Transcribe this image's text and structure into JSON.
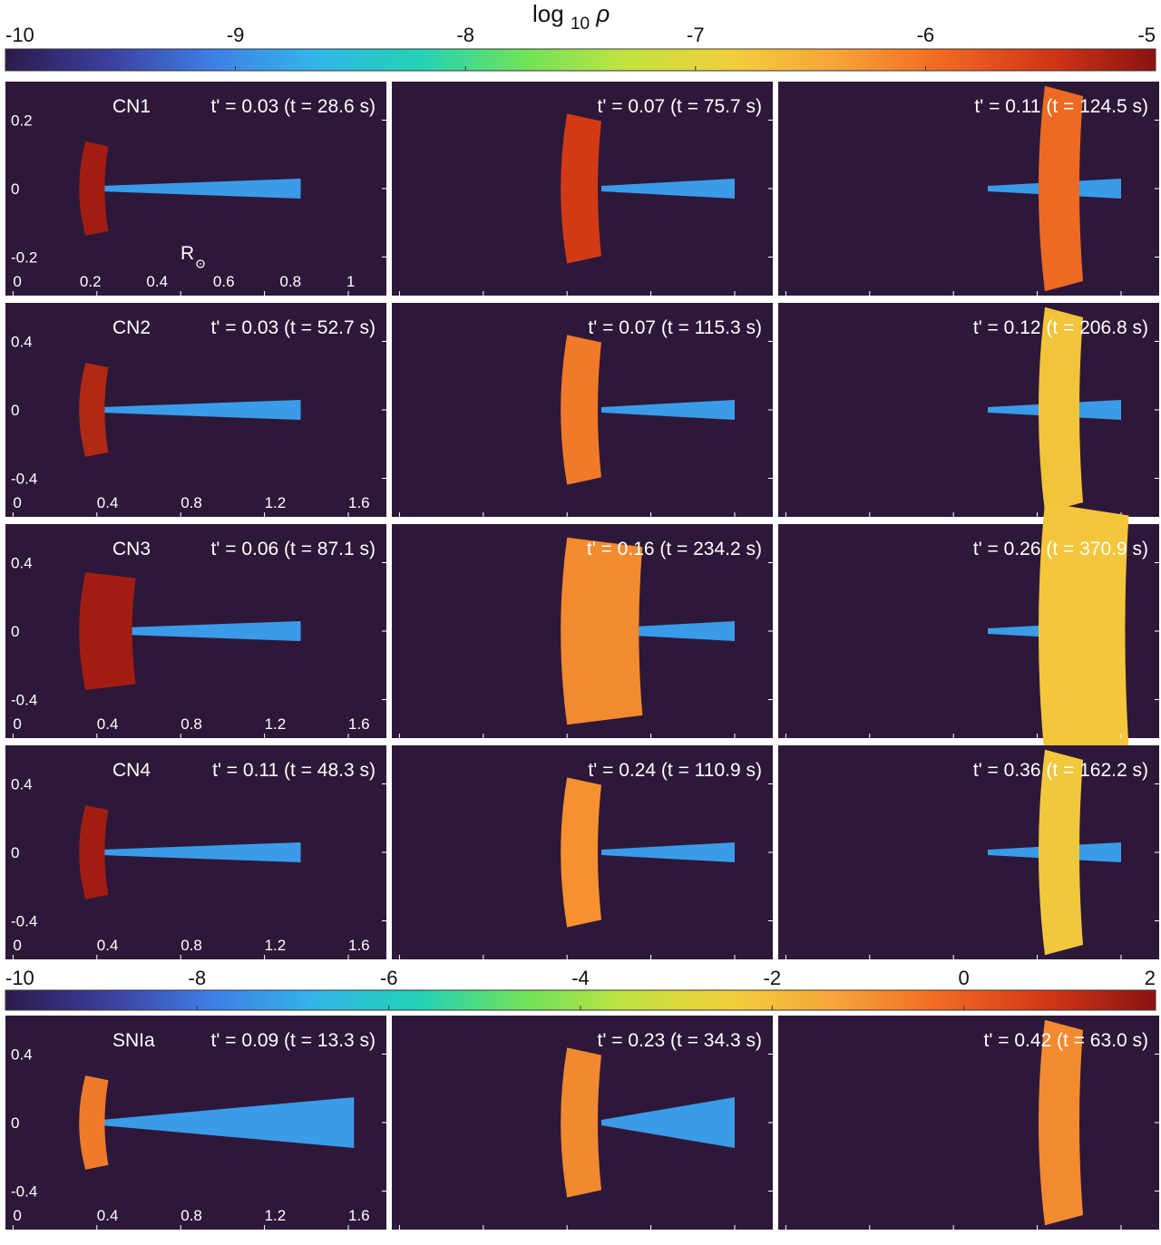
{
  "colorbar_top": {
    "title": "log",
    "title_sub": "10",
    "title_symbol": "ρ",
    "ticks": [
      "-10",
      "-9",
      "-8",
      "-7",
      "-6",
      "-5"
    ],
    "range": [
      -10,
      -5
    ]
  },
  "colorbar_bottom": {
    "ticks": [
      "-10",
      "-8",
      "-6",
      "-4",
      "-2",
      "0",
      "2"
    ],
    "range": [
      -10,
      2
    ]
  },
  "colormap": [
    "#2c1a4a",
    "#3b3f9e",
    "#3f7fe6",
    "#32b6e8",
    "#22d2b6",
    "#6ee25a",
    "#c2e340",
    "#f2cf3c",
    "#f6a53a",
    "#f26b22",
    "#d03516",
    "#8a1210"
  ],
  "rows": [
    {
      "model": "CN1",
      "panels": [
        {
          "time": "t' = 0.03 (t = 28.6 s)"
        },
        {
          "time": "t' = 0.07 (t = 75.7 s)"
        },
        {
          "time": "t' = 0.11 (t = 124.5 s)"
        }
      ],
      "y_ticks": [
        "0.2",
        "0",
        "-0.2"
      ],
      "x_ticks": [
        "0",
        "0.2",
        "0.4",
        "0.6",
        "0.8",
        "1"
      ],
      "unit_label": "R"
    },
    {
      "model": "CN2",
      "panels": [
        {
          "time": "t' = 0.03 (t = 52.7 s)"
        },
        {
          "time": "t' = 0.07 (t = 115.3 s)"
        },
        {
          "time": "t' = 0.12 (t = 206.8 s)"
        }
      ],
      "y_ticks": [
        "0.4",
        "0",
        "-0.4"
      ],
      "x_ticks": [
        "0",
        "0.4",
        "0.8",
        "1.2",
        "1.6"
      ]
    },
    {
      "model": "CN3",
      "panels": [
        {
          "time": "t' = 0.06 (t = 87.1 s)"
        },
        {
          "time": "t' = 0.16 (t = 234.2 s)"
        },
        {
          "time": "t' = 0.26 (t = 370.9 s)"
        }
      ],
      "y_ticks": [
        "0.4",
        "0",
        "-0.4"
      ],
      "x_ticks": [
        "0",
        "0.4",
        "0.8",
        "1.2",
        "1.6"
      ]
    },
    {
      "model": "CN4",
      "panels": [
        {
          "time": "t' = 0.11 (t = 48.3 s)"
        },
        {
          "time": "t' = 0.24 (t = 110.9 s)"
        },
        {
          "time": "t' = 0.36 (t = 162.2 s)"
        }
      ],
      "y_ticks": [
        "0.4",
        "0",
        "-0.4"
      ],
      "x_ticks": [
        "0",
        "0.4",
        "0.8",
        "1.2",
        "1.6"
      ]
    },
    {
      "model": "SNIa",
      "panels": [
        {
          "time": "t' = 0.09 (t = 13.3 s)"
        },
        {
          "time": "t' = 0.23 (t = 34.3 s)"
        },
        {
          "time": "t' = 0.42 (t = 63.0 s)"
        }
      ],
      "y_ticks": [
        "0.4",
        "0",
        "-0.4"
      ],
      "x_ticks": [
        "0",
        "0.4",
        "0.8",
        "1.2",
        "1.6"
      ]
    }
  ]
}
